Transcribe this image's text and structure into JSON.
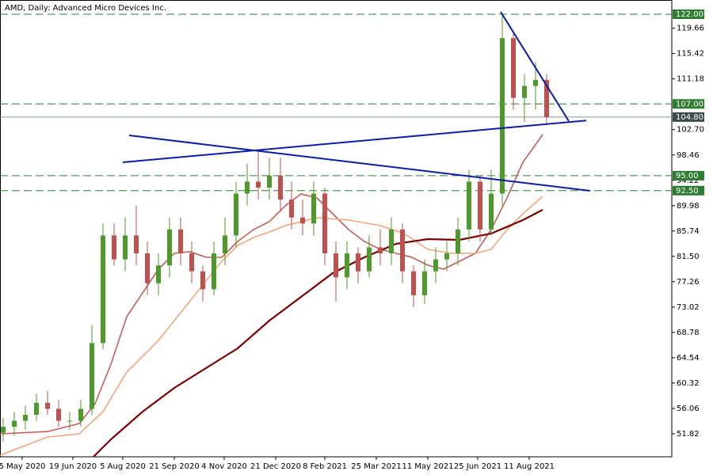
{
  "chart_data": {
    "type": "candlestick",
    "title": "AMD, Daily:  Advanced Micro Devices Inc.",
    "xlim": [
      -14,
      410
    ],
    "ylim": [
      47.98,
      124.38
    ],
    "xticks": [
      {
        "value": 0,
        "label": "5 May 2020"
      },
      {
        "value": 32,
        "label": "19 Jun 2020"
      },
      {
        "value": 63.5,
        "label": "5 Aug 2020"
      },
      {
        "value": 96,
        "label": "21 Sep 2020"
      },
      {
        "value": 127.5,
        "label": "4 Nov 2020"
      },
      {
        "value": 160,
        "label": "21 Dec 2020"
      },
      {
        "value": 191,
        "label": "8 Feb 2021"
      },
      {
        "value": 223.5,
        "label": "25 Mar 2021"
      },
      {
        "value": 256,
        "label": "11 May 2021"
      },
      {
        "value": 287.5,
        "label": "25 Jun 2021"
      },
      {
        "value": 320,
        "label": "11 Aug 2021"
      }
    ],
    "yticks": [
      51.82,
      56.06,
      60.32,
      64.54,
      68.78,
      73.02,
      77.26,
      {
        "value": 81.5,
        "label": "81.50"
      },
      85.74,
      89.98,
      94.22,
      98.46,
      {
        "value": 102.7,
        "label": "102.70"
      },
      111.18,
      115.42,
      119.66
    ],
    "candles": {
      "up_color": "#4c9a2a",
      "down_color": "#c0504d",
      "x": [
        -12,
        -5,
        2,
        9,
        16,
        23,
        30,
        37,
        44,
        51,
        58,
        65,
        72,
        79,
        86,
        93,
        100,
        107,
        114,
        121,
        128,
        135,
        142,
        149,
        156,
        163,
        170,
        177,
        184,
        191,
        198,
        205,
        212,
        219,
        226,
        233,
        240,
        247,
        254,
        261,
        268,
        275,
        282,
        289,
        296,
        303,
        310,
        317,
        324,
        331
      ],
      "open": [
        52,
        53,
        54,
        55,
        57,
        56,
        54,
        54,
        56,
        67,
        85,
        81,
        85,
        82,
        77,
        80,
        86,
        82,
        79,
        76,
        82,
        85,
        92,
        94,
        93,
        95,
        91,
        88,
        87,
        92,
        82,
        78,
        82,
        79,
        83,
        82,
        86,
        79,
        75,
        79,
        81,
        82,
        86,
        94,
        86,
        92,
        118,
        108,
        110,
        111
      ],
      "high": [
        54.5,
        55.5,
        56.5,
        58.5,
        59,
        57.5,
        55.5,
        57.5,
        70,
        87,
        87,
        88,
        90,
        84,
        82,
        88,
        88,
        84,
        80,
        84,
        88,
        94,
        97,
        99,
        98,
        98,
        94,
        91,
        94,
        93,
        84,
        84,
        83,
        85,
        86,
        88,
        87,
        80,
        81,
        83,
        84,
        88,
        96,
        95,
        96,
        121.9,
        119,
        112,
        114,
        112
      ],
      "low": [
        50.5,
        51.5,
        52.5,
        54,
        55,
        53,
        52.5,
        53,
        55,
        66,
        80,
        79,
        80,
        75,
        75,
        78,
        80,
        77,
        74,
        75,
        80,
        83,
        90,
        91,
        91,
        89,
        86,
        85,
        85,
        80,
        74,
        76,
        77,
        78,
        80,
        80,
        77,
        73,
        73.5,
        77,
        79,
        80,
        84,
        84,
        85,
        90,
        106,
        104,
        106,
        103.5
      ],
      "close": [
        53,
        54,
        55,
        57,
        56,
        54,
        54,
        56,
        67,
        85,
        81,
        85,
        82,
        77,
        80,
        86,
        82,
        79,
        76,
        82,
        85,
        92,
        94,
        93,
        95,
        91,
        88,
        87,
        92,
        82,
        78,
        82,
        79,
        83,
        82,
        86,
        79,
        75,
        79,
        81,
        82,
        86,
        94,
        86,
        92,
        118,
        108,
        110,
        111,
        104.8
      ]
    },
    "moving_averages": [
      {
        "color": "#c0605a",
        "width": 1.6,
        "x": [
          -14,
          16,
          36,
          46,
          56,
          66,
          76,
          86,
          96,
          106,
          116,
          126,
          136,
          146,
          156,
          166,
          176,
          186,
          196,
          206,
          216,
          226,
          236,
          246,
          256,
          266,
          276,
          286,
          296,
          306,
          316,
          328.5
        ],
        "values": [
          51.82,
          52.21,
          53.54,
          56.85,
          63.47,
          71.41,
          75.39,
          79.36,
          82.01,
          82.27,
          81.35,
          81.35,
          84.0,
          85.98,
          87.3,
          89.95,
          91.94,
          91.28,
          88.63,
          85.98,
          84.0,
          82.67,
          82.01,
          81.35,
          80.02,
          79.36,
          80.68,
          82.01,
          85.98,
          91.28,
          97.24,
          101.87
        ]
      },
      {
        "color": "#f4a67a",
        "width": 1.6,
        "x": [
          -14,
          16,
          36,
          51,
          66,
          86,
          106,
          126,
          136,
          146,
          156,
          166,
          186,
          206,
          226,
          241,
          256,
          271,
          286,
          296,
          306,
          316,
          328.5
        ],
        "values": [
          48.24,
          51.29,
          51.82,
          55.53,
          62.15,
          67.44,
          74.06,
          80.68,
          83.33,
          84.66,
          85.58,
          86.64,
          87.97,
          87.57,
          86.64,
          85.32,
          82.67,
          82.01,
          82.01,
          82.67,
          85.98,
          88.63,
          91.54
        ]
      },
      {
        "color": "#7a0000",
        "width": 2.2,
        "x": [
          45,
          56,
          76,
          96,
          116,
          136,
          156,
          176,
          196,
          216,
          236,
          256,
          276,
          296,
          316,
          328.5
        ],
        "values": [
          47.98,
          50.89,
          55.53,
          59.5,
          62.81,
          66.12,
          70.75,
          74.73,
          78.7,
          81.35,
          83.6,
          84.39,
          84.26,
          85.32,
          87.57,
          89.29
        ]
      }
    ],
    "trend_lines": [
      {
        "color": "#0b1fa0",
        "x": [
          63.5,
          356
        ],
        "values": [
          97.24,
          104.21
        ]
      },
      {
        "color": "#0b1fa0",
        "x": [
          67.5,
          358.5
        ],
        "values": [
          101.74,
          92.47
        ]
      },
      {
        "color": "#0b1fa0",
        "x": [
          302,
          345
        ],
        "values": [
          122.39,
          104.12
        ]
      }
    ],
    "level_color": "#2e7d32",
    "levels": [
      {
        "value": 122,
        "label": "122.00"
      },
      {
        "value": 107,
        "label": "107.00"
      },
      {
        "value": 95,
        "label": "95.00"
      },
      {
        "value": 92.5,
        "label": "92.50"
      }
    ],
    "current_price": {
      "value": 104.8,
      "label": "104.80",
      "color": "#3c4a4a"
    }
  }
}
